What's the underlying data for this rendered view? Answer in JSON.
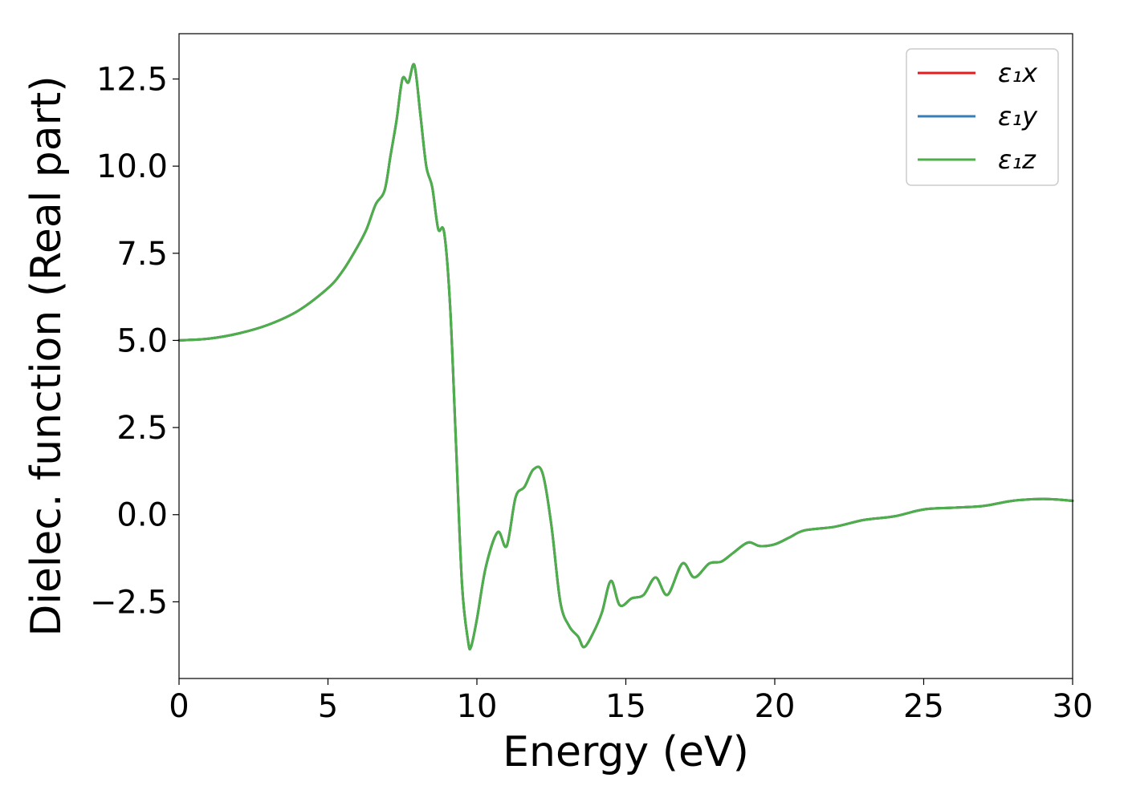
{
  "chart_data": {
    "type": "line",
    "title": "",
    "xlabel": "Energy (eV)",
    "ylabel": "Dielec. function (Real part)",
    "xlim": [
      0,
      30
    ],
    "ylim": [
      -4.7,
      13.8
    ],
    "xticks": [
      0,
      5,
      10,
      15,
      20,
      25,
      30
    ],
    "xtick_labels": [
      "0",
      "5",
      "10",
      "15",
      "20",
      "25",
      "30"
    ],
    "yticks": [
      -2.5,
      0.0,
      2.5,
      5.0,
      7.5,
      10.0,
      12.5
    ],
    "ytick_labels": [
      "−2.5",
      "0.0",
      "2.5",
      "5.0",
      "7.5",
      "10.0",
      "12.5"
    ],
    "grid": false,
    "legend_position": "top-right",
    "x": [
      0,
      1,
      2,
      3,
      4,
      5,
      5.5,
      6,
      6.3,
      6.6,
      6.9,
      7.1,
      7.3,
      7.5,
      7.7,
      7.9,
      8.1,
      8.3,
      8.5,
      8.7,
      8.9,
      9.1,
      9.3,
      9.5,
      9.7,
      9.8,
      10.0,
      10.3,
      10.7,
      11.0,
      11.3,
      11.6,
      11.9,
      12.2,
      12.5,
      12.8,
      13.1,
      13.4,
      13.6,
      13.9,
      14.2,
      14.5,
      14.8,
      15.2,
      15.6,
      16.0,
      16.4,
      16.9,
      17.3,
      17.8,
      18.2,
      18.6,
      19.1,
      19.5,
      20.0,
      20.5,
      21.0,
      22.0,
      23.0,
      24.0,
      25.0,
      26.0,
      27.0,
      28.0,
      29.0,
      30.0
    ],
    "series": [
      {
        "name": "ε₁x",
        "color": "#e41a1c",
        "values": [
          5.0,
          5.05,
          5.2,
          5.45,
          5.85,
          6.5,
          7.0,
          7.7,
          8.2,
          8.9,
          9.3,
          10.3,
          11.3,
          12.5,
          12.4,
          12.9,
          11.5,
          10.0,
          9.4,
          8.2,
          8.1,
          6.0,
          2.0,
          -2.0,
          -3.6,
          -3.8,
          -3.0,
          -1.5,
          -0.5,
          -0.9,
          0.5,
          0.8,
          1.3,
          1.2,
          -0.3,
          -2.5,
          -3.2,
          -3.5,
          -3.8,
          -3.4,
          -2.8,
          -1.9,
          -2.6,
          -2.4,
          -2.3,
          -1.8,
          -2.3,
          -1.4,
          -1.8,
          -1.4,
          -1.35,
          -1.1,
          -0.8,
          -0.9,
          -0.85,
          -0.65,
          -0.45,
          -0.35,
          -0.15,
          -0.05,
          0.15,
          0.2,
          0.25,
          0.4,
          0.45,
          0.4
        ]
      },
      {
        "name": "ε₁y",
        "color": "#377eb8",
        "values": [
          5.0,
          5.05,
          5.2,
          5.45,
          5.85,
          6.5,
          7.0,
          7.7,
          8.2,
          8.9,
          9.3,
          10.3,
          11.3,
          12.5,
          12.4,
          12.9,
          11.5,
          10.0,
          9.4,
          8.2,
          8.1,
          6.0,
          2.0,
          -2.0,
          -3.6,
          -3.8,
          -3.0,
          -1.5,
          -0.5,
          -0.9,
          0.5,
          0.8,
          1.3,
          1.2,
          -0.3,
          -2.5,
          -3.2,
          -3.5,
          -3.8,
          -3.4,
          -2.8,
          -1.9,
          -2.6,
          -2.4,
          -2.3,
          -1.8,
          -2.3,
          -1.4,
          -1.8,
          -1.4,
          -1.35,
          -1.1,
          -0.8,
          -0.9,
          -0.85,
          -0.65,
          -0.45,
          -0.35,
          -0.15,
          -0.05,
          0.15,
          0.2,
          0.25,
          0.4,
          0.45,
          0.4
        ]
      },
      {
        "name": "ε₁z",
        "color": "#4daf4a",
        "values": [
          5.0,
          5.05,
          5.2,
          5.45,
          5.85,
          6.5,
          7.0,
          7.7,
          8.2,
          8.9,
          9.3,
          10.3,
          11.3,
          12.5,
          12.4,
          12.9,
          11.5,
          10.0,
          9.4,
          8.2,
          8.1,
          6.0,
          2.0,
          -2.0,
          -3.6,
          -3.8,
          -3.0,
          -1.5,
          -0.5,
          -0.9,
          0.5,
          0.8,
          1.3,
          1.2,
          -0.3,
          -2.5,
          -3.2,
          -3.5,
          -3.8,
          -3.4,
          -2.8,
          -1.9,
          -2.6,
          -2.4,
          -2.3,
          -1.8,
          -2.3,
          -1.4,
          -1.8,
          -1.4,
          -1.35,
          -1.1,
          -0.8,
          -0.9,
          -0.85,
          -0.65,
          -0.45,
          -0.35,
          -0.15,
          -0.05,
          0.15,
          0.2,
          0.25,
          0.4,
          0.45,
          0.4
        ]
      }
    ]
  }
}
